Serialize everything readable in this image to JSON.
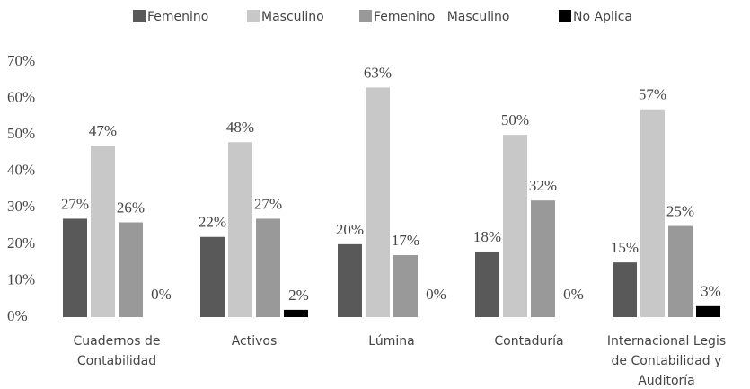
{
  "chart_data": {
    "type": "bar",
    "categories": [
      "Cuadernos de\nContabilidad",
      "Activos",
      "Lúmina",
      "Contaduría",
      "Internacional Legis\nde Contabilidad y\nAuditoría"
    ],
    "series": [
      {
        "name": "Femenino",
        "color": "#595959",
        "values": [
          27,
          22,
          20,
          18,
          15
        ],
        "value_labels": [
          "27%",
          "22%",
          "20%",
          "18%",
          "15%"
        ]
      },
      {
        "name": "Masculino",
        "color": "#c8c8c8",
        "values": [
          47,
          48,
          63,
          50,
          57
        ],
        "value_labels": [
          "47%",
          "48%",
          "63%",
          "50%",
          "57%"
        ]
      },
      {
        "name": "Femenino   Masculino",
        "color": "#999999",
        "values": [
          26,
          27,
          17,
          32,
          25
        ],
        "value_labels": [
          "26%",
          "27%",
          "17%",
          "32%",
          "25%"
        ]
      },
      {
        "name": "No Aplica",
        "color": "#000000",
        "values": [
          0,
          2,
          0,
          0,
          3
        ],
        "value_labels": [
          "0%",
          "2%",
          "0%",
          "0%",
          "3%"
        ]
      }
    ],
    "ylim": [
      0,
      70
    ],
    "yticks": [
      {
        "value": 0,
        "label": "0%"
      },
      {
        "value": 10,
        "label": "10%"
      },
      {
        "value": 20,
        "label": "20%"
      },
      {
        "value": 30,
        "label": "30%"
      },
      {
        "value": 40,
        "label": "40%"
      },
      {
        "value": 50,
        "label": "50%"
      },
      {
        "value": 60,
        "label": "60%"
      },
      {
        "value": 70,
        "label": "70%"
      }
    ],
    "grid": false,
    "legend": "top"
  }
}
